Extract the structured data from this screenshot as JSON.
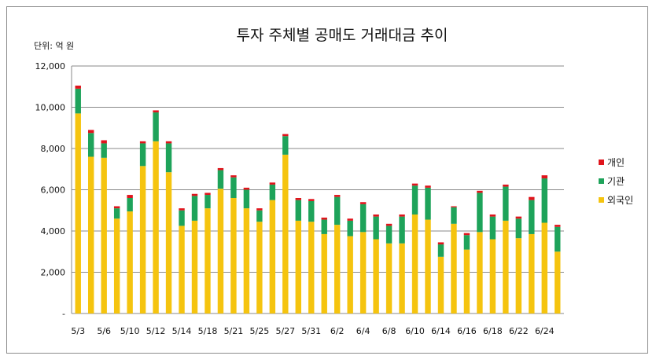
{
  "chart_data": {
    "type": "bar",
    "stacked": true,
    "title": "투자 주체별 공매도 거래대금 추이",
    "unit_label": "단위: 억 원",
    "ylim": [
      0,
      12000
    ],
    "y_ticks": [
      0,
      2000,
      4000,
      6000,
      8000,
      10000,
      12000
    ],
    "y_tick_labels": [
      "-",
      "2,000",
      "4,000",
      "6,000",
      "8,000",
      "10,000",
      "12,000"
    ],
    "x_tick_labels": [
      "5/3",
      "5/6",
      "5/10",
      "5/12",
      "5/14",
      "5/18",
      "5/21",
      "5/25",
      "5/27",
      "5/31",
      "6/2",
      "6/4",
      "6/8",
      "6/10",
      "6/14",
      "6/16",
      "6/18",
      "6/22",
      "6/24"
    ],
    "grid": true,
    "legend_position": "right",
    "colors": {
      "외국인": "#f5c40f",
      "기관": "#1ea35a",
      "개인": "#e0141c"
    },
    "series": [
      {
        "name": "외국인",
        "values": [
          9700,
          7600,
          7550,
          4600,
          4950,
          7150,
          8350,
          6850,
          4250,
          4500,
          5100,
          6050,
          5600,
          5100,
          4450,
          5500,
          7700,
          4500,
          4450,
          3850,
          4300,
          3750,
          3950,
          3600,
          3400,
          3400,
          4800,
          4550,
          2750,
          4350,
          3100,
          3950,
          3600,
          4500,
          3650,
          3850,
          4400,
          3000
        ]
      },
      {
        "name": "기관",
        "values": [
          1200,
          1150,
          700,
          500,
          650,
          1100,
          1400,
          1400,
          750,
          1200,
          650,
          900,
          1000,
          900,
          550,
          750,
          900,
          1000,
          1000,
          700,
          1350,
          750,
          1350,
          1100,
          850,
          1300,
          1400,
          1550,
          600,
          800,
          700,
          1900,
          1100,
          1650,
          950,
          1650,
          2150,
          1200
        ]
      },
      {
        "name": "개인",
        "values": [
          150,
          150,
          150,
          100,
          150,
          100,
          100,
          100,
          100,
          100,
          100,
          100,
          100,
          100,
          100,
          100,
          100,
          100,
          100,
          100,
          100,
          100,
          100,
          100,
          100,
          100,
          100,
          100,
          100,
          50,
          100,
          100,
          100,
          100,
          100,
          150,
          150,
          100
        ]
      }
    ]
  }
}
